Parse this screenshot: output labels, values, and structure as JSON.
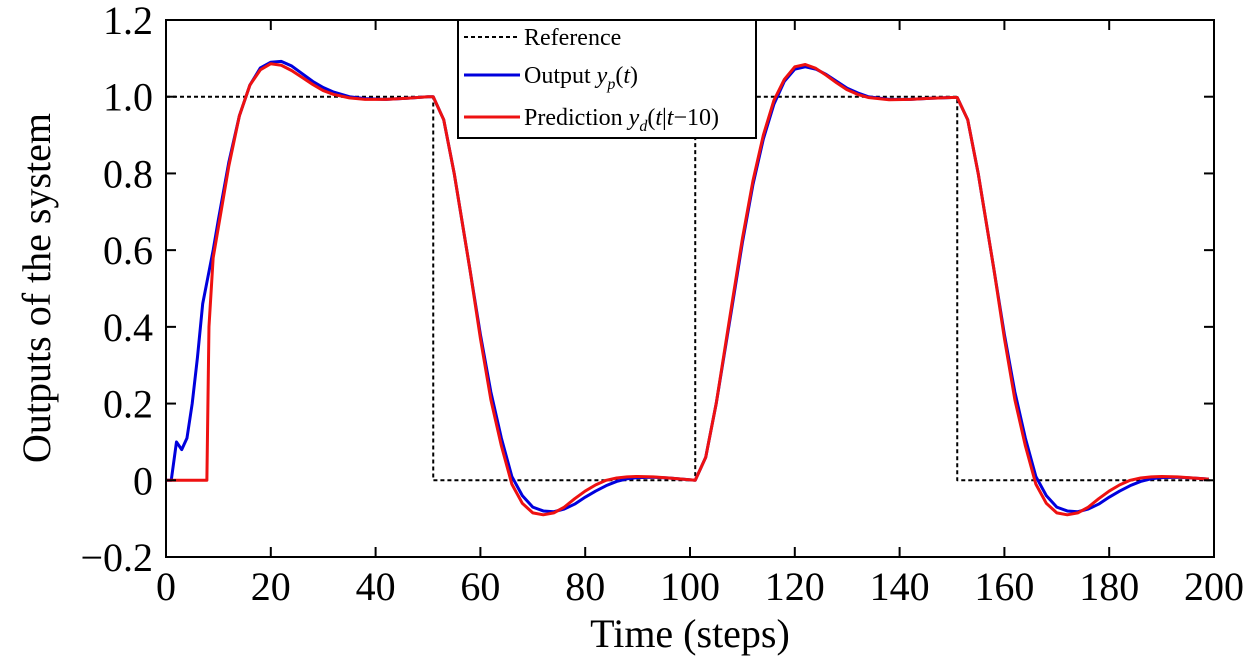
{
  "chart_data": {
    "type": "line",
    "xlabel": "Time (steps)",
    "ylabel": "Outputs of the system",
    "xlim": [
      0,
      200
    ],
    "ylim": [
      -0.2,
      1.2
    ],
    "xticks": [
      0,
      20,
      40,
      60,
      80,
      100,
      120,
      140,
      160,
      180,
      200
    ],
    "xtick_labels": [
      "0",
      "20",
      "40",
      "60",
      "80",
      "100",
      "120",
      "140",
      "160",
      "180",
      "200"
    ],
    "yticks": [
      -0.2,
      0,
      0.2,
      0.4,
      0.6,
      0.8,
      1.0,
      1.2
    ],
    "ytick_labels": [
      "−0.2",
      "0",
      "0.2",
      "0.4",
      "0.6",
      "0.8",
      "1.0",
      "1.2"
    ],
    "grid": false,
    "legend_position": "top-center",
    "series": [
      {
        "name": "Reference",
        "color": "#000000",
        "style": "dashed",
        "points": [
          [
            0,
            1.0
          ],
          [
            51,
            1.0
          ],
          [
            51,
            0
          ],
          [
            101,
            0
          ],
          [
            101,
            1.0
          ],
          [
            151,
            1.0
          ],
          [
            151,
            0
          ],
          [
            200,
            0
          ]
        ]
      },
      {
        "name": "Output y_p(t)",
        "color": "#0000dd",
        "style": "solid",
        "points": [
          [
            0,
            0
          ],
          [
            1,
            0
          ],
          [
            2,
            0.1
          ],
          [
            3,
            0.08
          ],
          [
            4,
            0.11
          ],
          [
            5,
            0.2
          ],
          [
            6,
            0.32
          ],
          [
            7,
            0.46
          ],
          [
            8,
            0.53
          ],
          [
            9,
            0.6
          ],
          [
            10,
            0.68
          ],
          [
            12,
            0.83
          ],
          [
            14,
            0.95
          ],
          [
            16,
            1.03
          ],
          [
            18,
            1.075
          ],
          [
            20,
            1.09
          ],
          [
            22,
            1.092
          ],
          [
            24,
            1.08
          ],
          [
            26,
            1.06
          ],
          [
            28,
            1.04
          ],
          [
            30,
            1.024
          ],
          [
            32,
            1.012
          ],
          [
            35,
            1.0
          ],
          [
            38,
            0.995
          ],
          [
            42,
            0.993
          ],
          [
            46,
            0.996
          ],
          [
            50,
            1.0
          ],
          [
            51,
            1.0
          ],
          [
            53,
            0.94
          ],
          [
            55,
            0.8
          ],
          [
            58,
            0.55
          ],
          [
            60,
            0.38
          ],
          [
            62,
            0.23
          ],
          [
            64,
            0.11
          ],
          [
            66,
            0.01
          ],
          [
            68,
            -0.04
          ],
          [
            70,
            -0.07
          ],
          [
            72,
            -0.08
          ],
          [
            74,
            -0.082
          ],
          [
            76,
            -0.075
          ],
          [
            78,
            -0.062
          ],
          [
            80,
            -0.044
          ],
          [
            82,
            -0.028
          ],
          [
            84,
            -0.014
          ],
          [
            86,
            -0.003
          ],
          [
            88,
            0.004
          ],
          [
            90,
            0.007
          ],
          [
            93,
            0.008
          ],
          [
            96,
            0.006
          ],
          [
            101,
            0.0
          ],
          [
            103,
            0.06
          ],
          [
            105,
            0.2
          ],
          [
            108,
            0.45
          ],
          [
            110,
            0.62
          ],
          [
            112,
            0.77
          ],
          [
            114,
            0.89
          ],
          [
            116,
            0.98
          ],
          [
            118,
            1.04
          ],
          [
            120,
            1.072
          ],
          [
            122,
            1.078
          ],
          [
            124,
            1.072
          ],
          [
            126,
            1.058
          ],
          [
            128,
            1.04
          ],
          [
            130,
            1.022
          ],
          [
            132,
            1.01
          ],
          [
            134,
            1.0
          ],
          [
            138,
            0.993
          ],
          [
            142,
            0.993
          ],
          [
            146,
            0.996
          ],
          [
            150,
            0.998
          ],
          [
            151,
            0.998
          ],
          [
            153,
            0.94
          ],
          [
            155,
            0.8
          ],
          [
            158,
            0.55
          ],
          [
            160,
            0.38
          ],
          [
            162,
            0.23
          ],
          [
            164,
            0.11
          ],
          [
            166,
            0.01
          ],
          [
            168,
            -0.04
          ],
          [
            170,
            -0.07
          ],
          [
            172,
            -0.08
          ],
          [
            174,
            -0.082
          ],
          [
            176,
            -0.075
          ],
          [
            178,
            -0.062
          ],
          [
            180,
            -0.044
          ],
          [
            182,
            -0.028
          ],
          [
            184,
            -0.014
          ],
          [
            186,
            -0.003
          ],
          [
            188,
            0.004
          ],
          [
            190,
            0.007
          ],
          [
            193,
            0.008
          ],
          [
            196,
            0.006
          ],
          [
            199,
            0.003
          ]
        ]
      },
      {
        "name": "Prediction y_d(t|t−10)",
        "color": "#ee1111",
        "style": "solid",
        "points": [
          [
            0,
            0
          ],
          [
            7.8,
            0
          ],
          [
            8.2,
            0.4
          ],
          [
            9,
            0.58
          ],
          [
            10,
            0.66
          ],
          [
            12,
            0.82
          ],
          [
            14,
            0.95
          ],
          [
            16,
            1.03
          ],
          [
            18,
            1.07
          ],
          [
            20,
            1.086
          ],
          [
            22,
            1.082
          ],
          [
            24,
            1.068
          ],
          [
            26,
            1.05
          ],
          [
            28,
            1.032
          ],
          [
            30,
            1.016
          ],
          [
            32,
            1.006
          ],
          [
            35,
            0.997
          ],
          [
            38,
            0.993
          ],
          [
            42,
            0.993
          ],
          [
            46,
            0.996
          ],
          [
            50,
            1.0
          ],
          [
            51,
            1.0
          ],
          [
            53,
            0.94
          ],
          [
            55,
            0.8
          ],
          [
            58,
            0.55
          ],
          [
            60,
            0.37
          ],
          [
            62,
            0.21
          ],
          [
            64,
            0.09
          ],
          [
            66,
            -0.01
          ],
          [
            68,
            -0.06
          ],
          [
            70,
            -0.085
          ],
          [
            72,
            -0.09
          ],
          [
            74,
            -0.085
          ],
          [
            76,
            -0.07
          ],
          [
            78,
            -0.048
          ],
          [
            80,
            -0.028
          ],
          [
            82,
            -0.012
          ],
          [
            84,
            0.0
          ],
          [
            86,
            0.006
          ],
          [
            88,
            0.009
          ],
          [
            90,
            0.01
          ],
          [
            93,
            0.009
          ],
          [
            96,
            0.006
          ],
          [
            101,
            0.0
          ],
          [
            103,
            0.06
          ],
          [
            105,
            0.2
          ],
          [
            108,
            0.46
          ],
          [
            110,
            0.63
          ],
          [
            112,
            0.78
          ],
          [
            114,
            0.9
          ],
          [
            116,
            0.99
          ],
          [
            118,
            1.045
          ],
          [
            120,
            1.078
          ],
          [
            122,
            1.084
          ],
          [
            124,
            1.074
          ],
          [
            126,
            1.056
          ],
          [
            128,
            1.036
          ],
          [
            130,
            1.018
          ],
          [
            132,
            1.006
          ],
          [
            134,
            0.998
          ],
          [
            138,
            0.992
          ],
          [
            142,
            0.993
          ],
          [
            146,
            0.996
          ],
          [
            150,
            0.998
          ],
          [
            151,
            0.998
          ],
          [
            153,
            0.94
          ],
          [
            155,
            0.8
          ],
          [
            158,
            0.55
          ],
          [
            160,
            0.37
          ],
          [
            162,
            0.21
          ],
          [
            164,
            0.09
          ],
          [
            166,
            -0.01
          ],
          [
            168,
            -0.06
          ],
          [
            170,
            -0.085
          ],
          [
            172,
            -0.09
          ],
          [
            174,
            -0.085
          ],
          [
            176,
            -0.07
          ],
          [
            178,
            -0.048
          ],
          [
            180,
            -0.028
          ],
          [
            182,
            -0.012
          ],
          [
            184,
            0.0
          ],
          [
            186,
            0.006
          ],
          [
            188,
            0.009
          ],
          [
            190,
            0.01
          ],
          [
            193,
            0.009
          ],
          [
            196,
            0.006
          ],
          [
            199,
            0.003
          ]
        ]
      }
    ],
    "legend": {
      "reference": "Reference",
      "output_prefix": "Output ",
      "output_var": "y",
      "output_sub": "p",
      "output_suffix": "(t)",
      "prediction_prefix": "Prediction ",
      "prediction_var": "y",
      "prediction_sub": "d",
      "prediction_arg_open": "(",
      "prediction_arg_t": "t",
      "prediction_arg_bar": "|",
      "prediction_arg_t2": "t",
      "prediction_arg_rest": "−10)"
    }
  }
}
